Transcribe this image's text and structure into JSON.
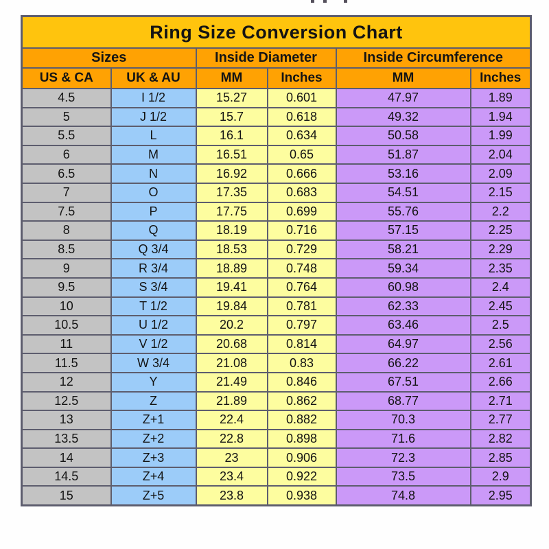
{
  "colors": {
    "page_bg": "#fefefe",
    "title_bg": "#ffc40d",
    "header_bg": "#ffa203",
    "us_ca_bg": "#c3c3c3",
    "uk_au_bg": "#9cccf9",
    "diameter_bg": "#fdfd9f",
    "circumference_bg": "#cb99f8",
    "grid_border": "#5d5d6e",
    "text": "#141414"
  },
  "chart_data": {
    "type": "table",
    "title": "Ring Size Conversion Chart",
    "group_headers": [
      {
        "label": "Sizes",
        "span": 2
      },
      {
        "label": "Inside Diameter",
        "span": 2
      },
      {
        "label": "Inside Circumference",
        "span": 2
      }
    ],
    "column_headers": [
      "US & CA",
      "UK & AU",
      "MM",
      "Inches",
      "MM",
      "Inches"
    ],
    "rows": [
      [
        "4.5",
        "I 1/2",
        "15.27",
        "0.601",
        "47.97",
        "1.89"
      ],
      [
        "5",
        "J 1/2",
        "15.7",
        "0.618",
        "49.32",
        "1.94"
      ],
      [
        "5.5",
        "L",
        "16.1",
        "0.634",
        "50.58",
        "1.99"
      ],
      [
        "6",
        "M",
        "16.51",
        "0.65",
        "51.87",
        "2.04"
      ],
      [
        "6.5",
        "N",
        "16.92",
        "0.666",
        "53.16",
        "2.09"
      ],
      [
        "7",
        "O",
        "17.35",
        "0.683",
        "54.51",
        "2.15"
      ],
      [
        "7.5",
        "P",
        "17.75",
        "0.699",
        "55.76",
        "2.2"
      ],
      [
        "8",
        "Q",
        "18.19",
        "0.716",
        "57.15",
        "2.25"
      ],
      [
        "8.5",
        "Q 3/4",
        "18.53",
        "0.729",
        "58.21",
        "2.29"
      ],
      [
        "9",
        "R 3/4",
        "18.89",
        "0.748",
        "59.34",
        "2.35"
      ],
      [
        "9.5",
        "S 3/4",
        "19.41",
        "0.764",
        "60.98",
        "2.4"
      ],
      [
        "10",
        "T 1/2",
        "19.84",
        "0.781",
        "62.33",
        "2.45"
      ],
      [
        "10.5",
        "U 1/2",
        "20.2",
        "0.797",
        "63.46",
        "2.5"
      ],
      [
        "11",
        "V 1/2",
        "20.68",
        "0.814",
        "64.97",
        "2.56"
      ],
      [
        "11.5",
        "W 3/4",
        "21.08",
        "0.83",
        "66.22",
        "2.61"
      ],
      [
        "12",
        "Y",
        "21.49",
        "0.846",
        "67.51",
        "2.66"
      ],
      [
        "12.5",
        "Z",
        "21.89",
        "0.862",
        "68.77",
        "2.71"
      ],
      [
        "13",
        "Z+1",
        "22.4",
        "0.882",
        "70.3",
        "2.77"
      ],
      [
        "13.5",
        "Z+2",
        "22.8",
        "0.898",
        "71.6",
        "2.82"
      ],
      [
        "14",
        "Z+3",
        "23",
        "0.906",
        "72.3",
        "2.85"
      ],
      [
        "14.5",
        "Z+4",
        "23.4",
        "0.922",
        "73.5",
        "2.9"
      ],
      [
        "15",
        "Z+5",
        "23.8",
        "0.938",
        "74.8",
        "2.95"
      ]
    ]
  }
}
